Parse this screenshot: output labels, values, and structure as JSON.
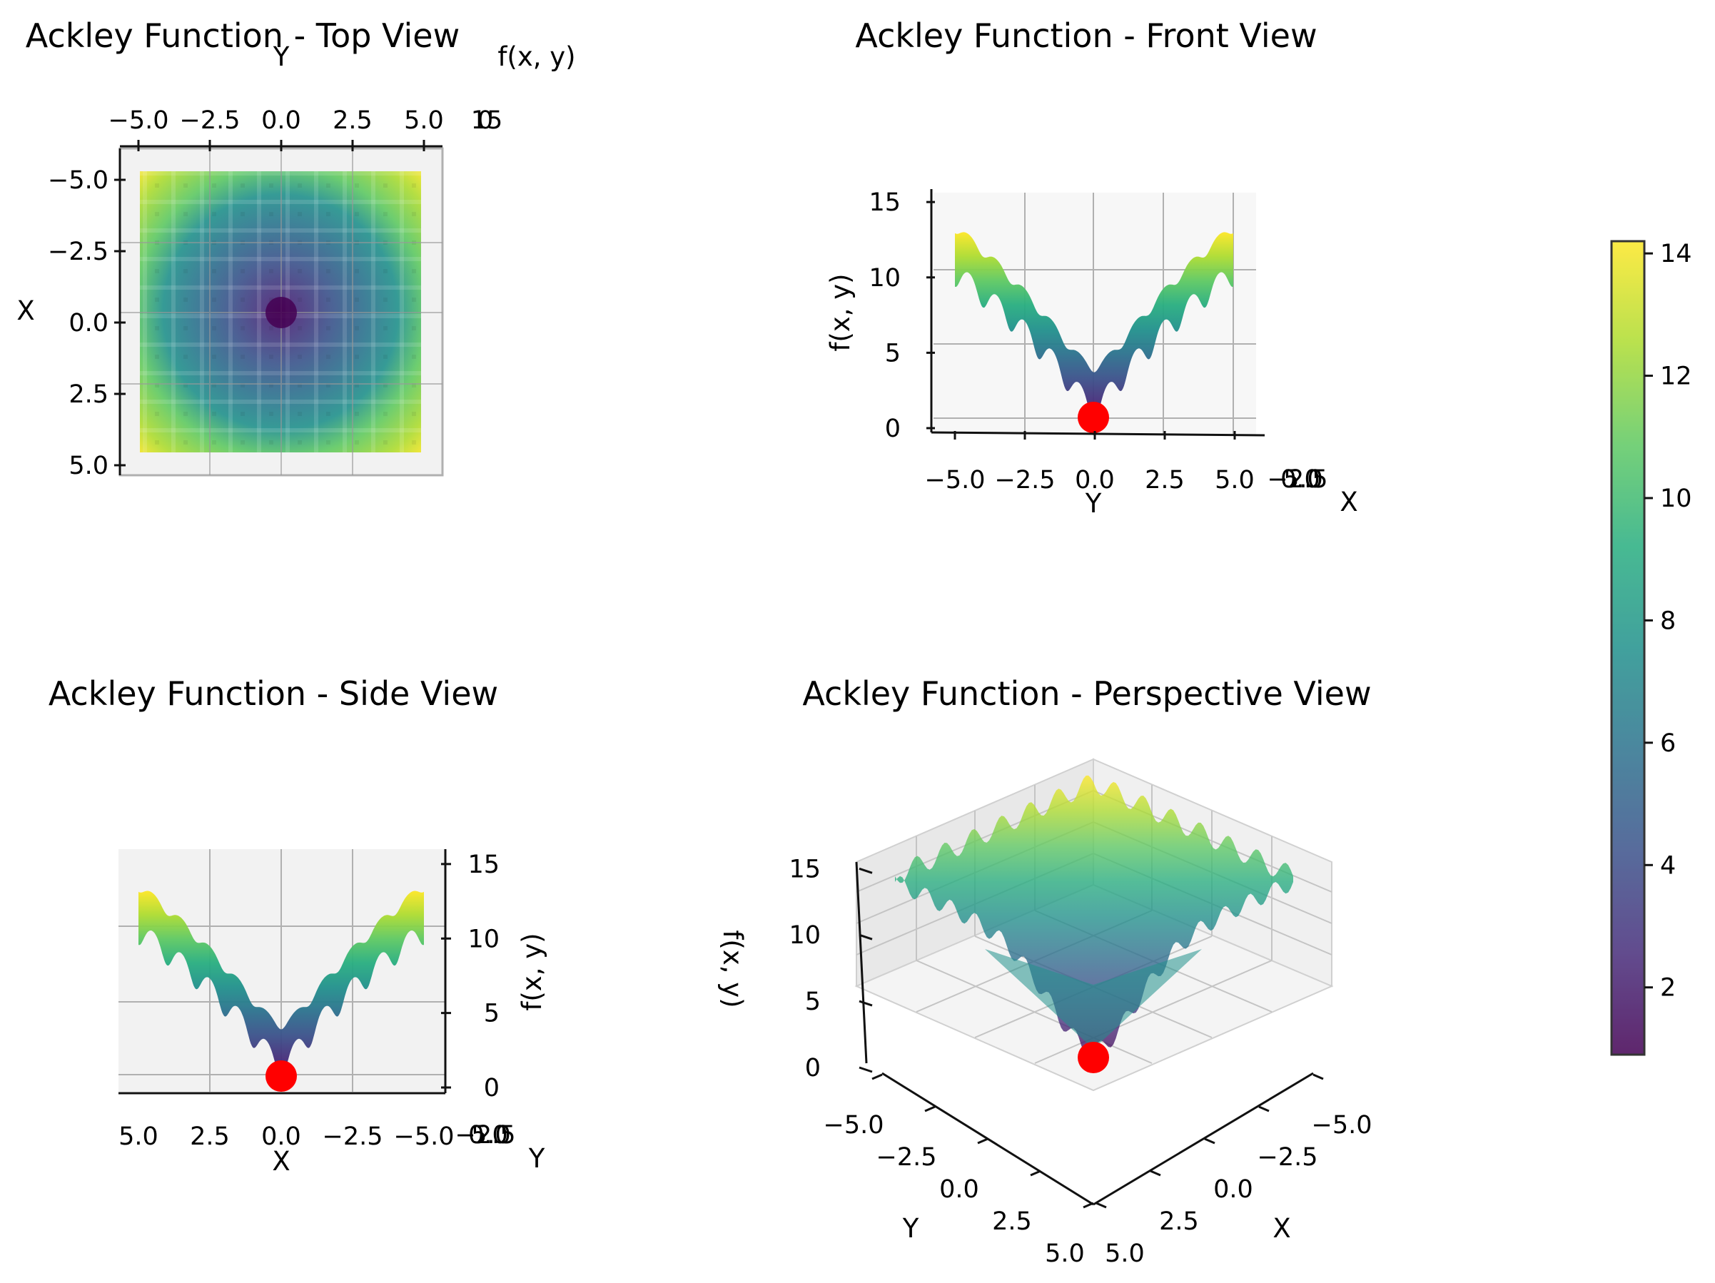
{
  "chart_data": [
    {
      "type": "heatmap",
      "title": "Ackley Function - Top View",
      "view": "top",
      "xlabel": "X",
      "ylabel": "Y",
      "zlabel": "f(x, y)",
      "x_range": [
        -5,
        5
      ],
      "y_range": [
        -5,
        5
      ],
      "x_ticks": [
        "−5.0",
        "−2.5",
        "0.0",
        "2.5",
        "5.0"
      ],
      "y_ticks": [
        "−5.0",
        "−2.5",
        "0.0",
        "2.5",
        "5.0"
      ],
      "z_ticks_overlapping": [
        "0",
        "15"
      ],
      "minimum": {
        "x": 0,
        "y": 0,
        "z": 0
      },
      "grid": true
    },
    {
      "type": "area",
      "title": "Ackley Function - Front View",
      "view": "front",
      "xlabel": "Y",
      "ylabel": "f(x, y)",
      "depth_label": "X",
      "x_ticks": [
        "−5.0",
        "−2.5",
        "0.0",
        "2.5",
        "5.0"
      ],
      "depth_ticks_overlapping": [
        "−2.5",
        "0.0",
        "5.0"
      ],
      "z_ticks": [
        "0",
        "5",
        "10",
        "15"
      ],
      "x_range": [
        -5,
        5
      ],
      "z_range": [
        0,
        15
      ],
      "minimum": {
        "x": 0,
        "y": 0,
        "z": 0
      },
      "grid": true
    },
    {
      "type": "area",
      "title": "Ackley Function - Side View",
      "view": "side",
      "xlabel": "X",
      "ylabel": "f(x, y)",
      "depth_label": "Y",
      "x_ticks": [
        "5.0",
        "2.5",
        "0.0",
        "−2.5",
        "−5.0"
      ],
      "depth_ticks_overlapping": [
        "−2.5",
        "0.0",
        "5.0"
      ],
      "z_ticks": [
        "0",
        "5",
        "10",
        "15"
      ],
      "x_range": [
        5,
        -5
      ],
      "z_range": [
        0,
        15
      ],
      "minimum": {
        "x": 0,
        "y": 0,
        "z": 0
      },
      "grid": true
    },
    {
      "type": "heatmap",
      "title": "Ackley Function - Perspective View",
      "view": "perspective",
      "xlabel": "X",
      "ylabel": "Y",
      "zlabel": "f(x, y)",
      "x_ticks": [
        "−5.0",
        "−2.5",
        "0.0",
        "2.5",
        "5.0"
      ],
      "y_ticks": [
        "−5.0",
        "−2.5",
        "0.0",
        "2.5",
        "5.0"
      ],
      "z_ticks": [
        "0",
        "5",
        "10",
        "15"
      ],
      "x_range": [
        -5,
        5
      ],
      "y_range": [
        -5,
        5
      ],
      "z_range": [
        0,
        15
      ],
      "minimum": {
        "x": 0,
        "y": 0,
        "z": 0
      },
      "grid": true
    }
  ],
  "colorbar": {
    "colormap": "viridis",
    "range": [
      0.9,
      14.2
    ],
    "ticks": [
      "2",
      "4",
      "6",
      "8",
      "10",
      "12",
      "14"
    ],
    "tick_values": [
      2,
      4,
      6,
      8,
      10,
      12,
      14
    ]
  },
  "colors": {
    "minimum_marker": "#ff0000",
    "pane": "#f2f2f2",
    "grid": "#b0b0b0"
  }
}
